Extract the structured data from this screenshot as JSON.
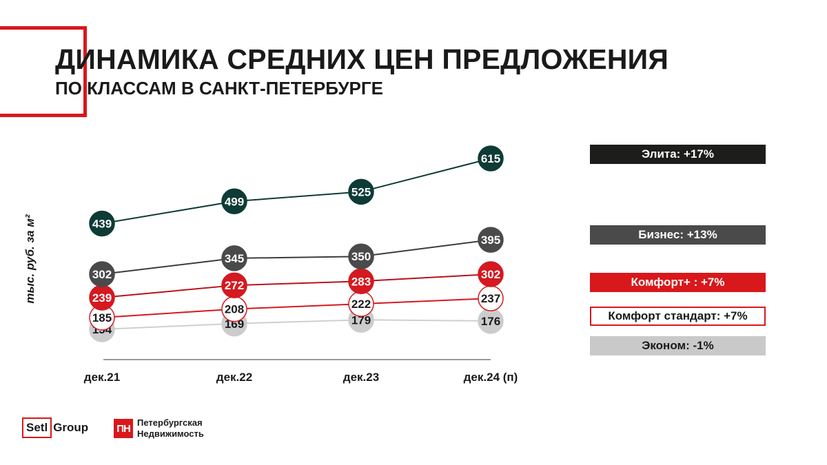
{
  "header": {
    "title": "ДИНАМИКА СРЕДНИХ ЦЕН ПРЕДЛОЖЕНИЯ",
    "subtitle": "ПО КЛАССАМ В САНКТ-ПЕТЕРБУРГЕ"
  },
  "chart_data": {
    "type": "line",
    "title": "ДИНАМИКА СРЕДНИХ ЦЕН ПРЕДЛОЖЕНИЯ ПО КЛАССАМ В САНКТ-ПЕТЕРБУРГЕ",
    "xlabel": "",
    "ylabel": "тыс. руб. за м²",
    "categories": [
      "дек.21",
      "дек.22",
      "дек.23",
      "дек.24 (п)"
    ],
    "series": [
      {
        "name": "Элита",
        "change": "+17%",
        "values": [
          439,
          499,
          525,
          615
        ],
        "line_color": "#0e3b36",
        "marker_fill": "#0e3b36",
        "marker_stroke": "#0e3b36",
        "label_color": "#ffffff"
      },
      {
        "name": "Бизнес",
        "change": "+13%",
        "values": [
          302,
          345,
          350,
          395
        ],
        "line_color": "#3c3c3c",
        "marker_fill": "#4a4a4a",
        "marker_stroke": "#4a4a4a",
        "label_color": "#ffffff"
      },
      {
        "name": "Комфорт+",
        "change": "+7%",
        "values": [
          239,
          272,
          283,
          302
        ],
        "line_color": "#b8121a",
        "marker_fill": "#d41920",
        "marker_stroke": "#d41920",
        "label_color": "#ffffff"
      },
      {
        "name": "Комфорт стандарт",
        "change": "+7%",
        "values": [
          185,
          208,
          222,
          237
        ],
        "line_color": "#d41920",
        "marker_fill": "#ffffff",
        "marker_stroke": "#d41920",
        "label_color": "#1a1a1a"
      },
      {
        "name": "Эконом",
        "change": "-1%",
        "values": [
          154,
          169,
          179,
          176
        ],
        "line_color": "#cfcfcf",
        "marker_fill": "#cccccc",
        "marker_stroke": "#cccccc",
        "label_color": "#1a1a1a"
      }
    ]
  },
  "legend": [
    {
      "label": "Элита: +17%",
      "bg": "#1d1d1b",
      "fg": "#ffffff",
      "border": "#1d1d1b"
    },
    {
      "label": "Бизнес: +13%",
      "bg": "#4a4a4a",
      "fg": "#ffffff",
      "border": "#4a4a4a"
    },
    {
      "label": "Комфорт+  : +7%",
      "bg": "#d8181b",
      "fg": "#ffffff",
      "border": "#d8181b"
    },
    {
      "label": "Комфорт стандарт: +7%",
      "bg": "#ffffff",
      "fg": "#1a1a1a",
      "border": "#d8181b"
    },
    {
      "label": "Эконом: -1%",
      "bg": "#c9c9c9",
      "fg": "#1a1a1a",
      "border": "#c9c9c9"
    }
  ],
  "logos": {
    "setl_box": "Setl",
    "setl_rest": "Group",
    "pn_mark": "ПН",
    "pn_line1": "Петербургская",
    "pn_line2": "Недвижимость"
  },
  "colors": {
    "accent": "#d8181b"
  }
}
